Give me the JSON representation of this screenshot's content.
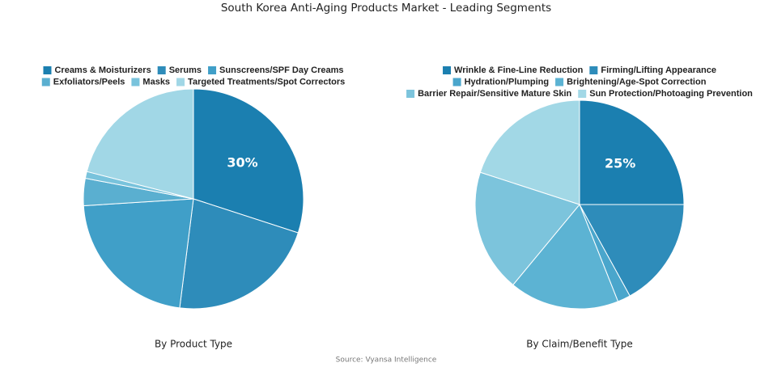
{
  "title": "South Korea Anti-Aging Products Market - Leading Segments",
  "source": "Source: Vyansa Intelligence",
  "chart_data": [
    {
      "type": "pie",
      "subtitle": "By Product Type",
      "categories": [
        "Creams & Moisturizers",
        "Serums",
        "Sunscreens/SPF Day Creams",
        "Exfoliators/Peels",
        "Masks",
        "Targeted Treatments/Spot Correctors"
      ],
      "values": [
        30,
        22,
        22,
        4,
        1,
        21
      ],
      "value_labels": [
        "30%",
        null,
        null,
        null,
        null,
        null
      ],
      "colors": [
        "#1b7fb0",
        "#2e8cba",
        "#409fc8",
        "#5aafd0",
        "#79c3dc",
        "#a1d7e6"
      ]
    },
    {
      "type": "pie",
      "subtitle": "By Claim/Benefit Type",
      "categories": [
        "Wrinkle & Fine-Line Reduction",
        "Firming/Lifting Appearance",
        "Hydration/Plumping",
        "Brightening/Age-Spot Correction",
        "Barrier Repair/Sensitive Mature Skin",
        "Sun Protection/Photoaging Prevention"
      ],
      "values": [
        25,
        17,
        2,
        17,
        19,
        20
      ],
      "value_labels": [
        "25%",
        null,
        null,
        null,
        null,
        null
      ],
      "colors": [
        "#1b7fb0",
        "#2e8cba",
        "#4aa6cc",
        "#5cb3d3",
        "#7cc4dc",
        "#a2d8e6"
      ]
    }
  ]
}
